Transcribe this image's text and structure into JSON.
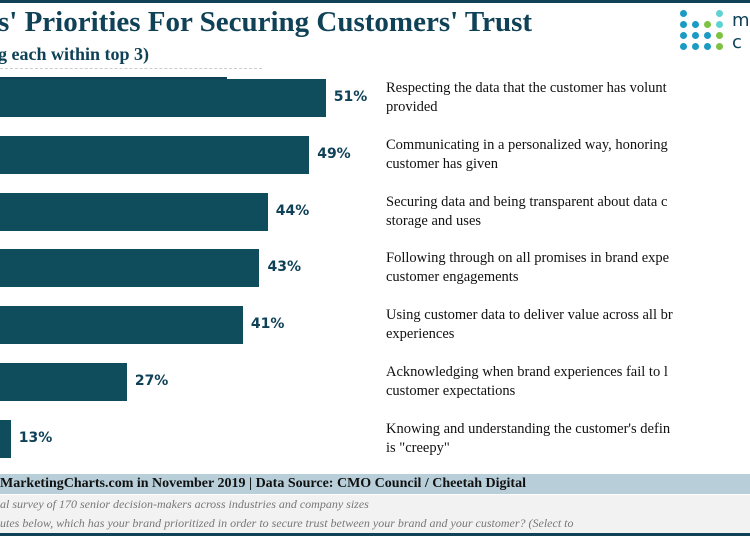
{
  "chart_data": {
    "type": "bar",
    "orientation": "horizontal",
    "title": "s' Priorities For Securing Customers' Trust",
    "subtitle": "g each within top 3)",
    "categories": [
      [
        "Respecting the data that the customer has volunt",
        "provided"
      ],
      [
        "Communicating in a personalized way, honoring",
        "customer has given"
      ],
      [
        "Securing data and being transparent about data c",
        "storage and uses"
      ],
      [
        "Following through on all promises in brand expe",
        "customer engagements"
      ],
      [
        "Using customer data to deliver value across all br",
        "experiences"
      ],
      [
        "Acknowledging when brand experiences fail to l",
        "customer expectations"
      ],
      [
        "Knowing and understanding the customer's defin",
        "is \"creepy\""
      ]
    ],
    "values": [
      51,
      49,
      44,
      43,
      41,
      27,
      13
    ],
    "value_labels": [
      "51%",
      "49%",
      "44%",
      "43%",
      "41%",
      "27%",
      "13%"
    ],
    "bar_color": "#0f4c5c"
  },
  "footer": {
    "source": "MarketingCharts.com in November 2019 | Data Source: CMO Council / Cheetah Digital",
    "note1": "al survey of 170 senior decision-makers across industries and company sizes",
    "note2": "utes below, which has your brand prioritized in order to secure trust between your brand and your customer? (Select to"
  },
  "logo": {
    "text1": "m",
    "text2": "c",
    "colors": [
      "#1b9bc4",
      "#7dc242",
      "#5fd3d3"
    ]
  }
}
